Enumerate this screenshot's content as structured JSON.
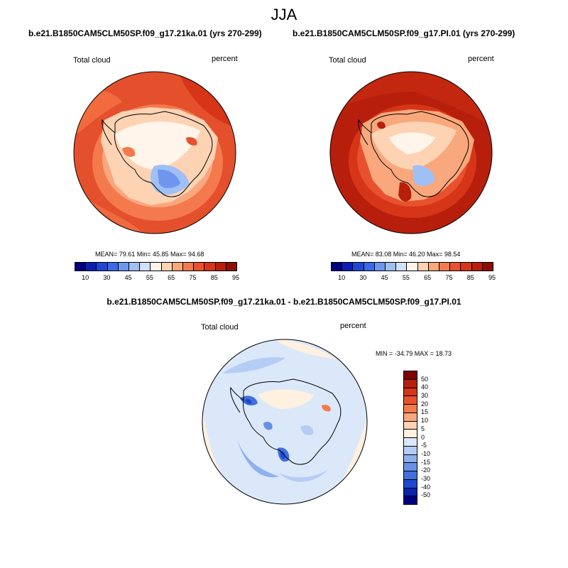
{
  "title": "JJA",
  "panels": [
    {
      "title": "b.e21.B1850CAM5CLM50SP.f09_g17.21ka.01 (yrs 270-299)",
      "variable": "Total cloud",
      "units": "percent",
      "stats": "MEAN=  79.61  Min=  45.85  Max=  94.68"
    },
    {
      "title": "b.e21.B1850CAM5CLM50SP.f09_g17.PI.01 (yrs 270-299)",
      "variable": "Total cloud",
      "units": "percent",
      "stats": "MEAN=  83.08  Min=  46.20  Max=  98.54"
    },
    {
      "title": "b.e21.B1850CAM5CLM50SP.f09_g17.21ka.01 - b.e21.B1850CAM5CLM50SP.f09_g17.PI.01",
      "variable": "Total cloud",
      "units": "percent",
      "stats": "MIN = -34.79 MAX =  18.73"
    }
  ],
  "colorbar_abs": {
    "ticks": [
      "10",
      "30",
      "45",
      "55",
      "65",
      "75",
      "85",
      "95"
    ],
    "colors": [
      "#00007f",
      "#0d1fb3",
      "#1f47d6",
      "#3b6ae8",
      "#6e96f0",
      "#a0bff5",
      "#d0e2fa",
      "#fff5ea",
      "#fdd3b4",
      "#f9a77c",
      "#f47a4e",
      "#e8512d",
      "#d63518",
      "#b71f0c",
      "#8c0e05"
    ]
  },
  "colorbar_diff": {
    "ticks": [
      "50",
      "40",
      "30",
      "20",
      "15",
      "10",
      "5",
      "0",
      "-5",
      "-10",
      "-15",
      "-20",
      "-30",
      "-40",
      "-50"
    ],
    "colors": [
      "#800000",
      "#b71f0c",
      "#d63518",
      "#e8512d",
      "#f47a4e",
      "#f9a77c",
      "#fdd3b4",
      "#fff0e0",
      "#dbe8fa",
      "#b5cdf5",
      "#8eb0ee",
      "#6790e6",
      "#416fdc",
      "#1f47d0",
      "#0a22b0",
      "#000080"
    ]
  }
}
